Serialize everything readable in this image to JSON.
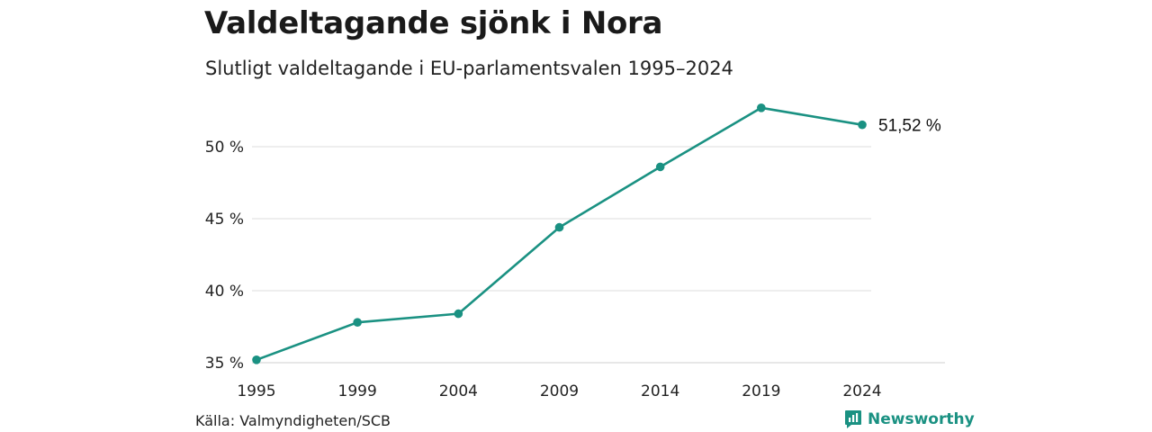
{
  "title": "Valdeltagande sjönk i Nora",
  "subtitle": "Slutligt valdeltagande i EU-parlamentsvalen 1995–2024",
  "source": "Källa: Valmyndigheten/SCB",
  "brand": {
    "name": "Newsworthy",
    "icon": "newsworthy-logo-icon",
    "color": "#1a9182"
  },
  "chart_data": {
    "type": "line",
    "x": [
      "1995",
      "1999",
      "2004",
      "2009",
      "2014",
      "2019",
      "2024"
    ],
    "series": [
      {
        "values": [
          35.2,
          37.8,
          38.4,
          44.4,
          48.6,
          52.7,
          51.52
        ],
        "color": "#1a9182"
      }
    ],
    "yticks": [
      35,
      40,
      45,
      50
    ],
    "ytick_labels": [
      "35 %",
      "40 %",
      "45 %",
      "50 %"
    ],
    "ylim": [
      35,
      52.7
    ],
    "end_label": "51,52 %",
    "grid": true
  }
}
